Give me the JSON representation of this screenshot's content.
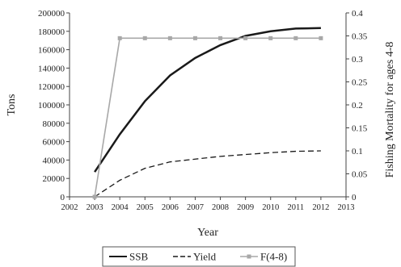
{
  "chart_data": {
    "type": "line",
    "x": [
      2002,
      2003,
      2004,
      2005,
      2006,
      2007,
      2008,
      2009,
      2010,
      2011,
      2012,
      2013
    ],
    "xticks": [
      "2002",
      "2003",
      "2004",
      "2005",
      "2006",
      "2007",
      "2008",
      "2009",
      "2010",
      "2011",
      "2012",
      "2013"
    ],
    "xlim": [
      2002,
      2013
    ],
    "xlabel": "Year",
    "ylabel_left": "Tons",
    "ylim_left": [
      0,
      200000
    ],
    "yticks_left": [
      "0",
      "20000",
      "40000",
      "60000",
      "80000",
      "100000",
      "120000",
      "140000",
      "160000",
      "180000",
      "200000"
    ],
    "ylabel_right": "Fishing Mortality for ages 4-8",
    "ylim_right": [
      0,
      0.4
    ],
    "yticks_right": [
      "0",
      "0.05",
      "0.1",
      "0.15",
      "0.2",
      "0.25",
      "0.3",
      "0.35",
      "0.4"
    ],
    "grid": false,
    "legend_position": "bottom-center",
    "series": [
      {
        "name": "SSB",
        "axis": "left",
        "style": "solid-thick",
        "color": "#1a1a1a",
        "x": [
          2003,
          2004,
          2005,
          2006,
          2007,
          2008,
          2009,
          2010,
          2011,
          2012
        ],
        "values": [
          27000,
          68000,
          104000,
          132000,
          151000,
          165000,
          175000,
          180000,
          183000,
          183500
        ]
      },
      {
        "name": "Yield",
        "axis": "left",
        "style": "dashed",
        "color": "#1a1a1a",
        "x": [
          2003,
          2004,
          2005,
          2006,
          2007,
          2008,
          2009,
          2010,
          2011,
          2012
        ],
        "values": [
          0,
          18000,
          31000,
          38000,
          41000,
          44000,
          46000,
          48000,
          49500,
          50000
        ]
      },
      {
        "name": "F(4-8)",
        "axis": "right",
        "style": "solid-marker",
        "color": "#a8a8a8",
        "x": [
          2003,
          2004,
          2005,
          2006,
          2007,
          2008,
          2009,
          2010,
          2011,
          2012
        ],
        "values": [
          0,
          0.345,
          0.345,
          0.345,
          0.345,
          0.345,
          0.345,
          0.345,
          0.345,
          0.345
        ]
      }
    ]
  }
}
